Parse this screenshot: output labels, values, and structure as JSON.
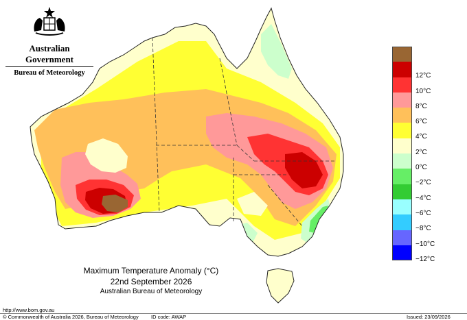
{
  "header": {
    "government": "Australian Government",
    "bureau": "Bureau of Meteorology"
  },
  "map": {
    "title": "Maximum Temperature Anomaly (°C)",
    "date": "22nd September 2026",
    "agency": "Australian Bureau of Meteorology",
    "url": "http://www.bom.gov.au",
    "colors": {
      "ocean": "#ffffff",
      "light_yellow": "#ffffcc",
      "yellow": "#ffff33",
      "orange": "#ffc05a",
      "pink": "#ff9999",
      "red": "#ff3333",
      "dark_red": "#cc0000",
      "brown": "#996633",
      "pale_green": "#ccffcc",
      "light_green": "#66ee66"
    }
  },
  "legend": {
    "items": [
      {
        "label": "",
        "color": "#996633"
      },
      {
        "label": "12°C",
        "color": "#cc0000"
      },
      {
        "label": "10°C",
        "color": "#ff3333"
      },
      {
        "label": "8°C",
        "color": "#ff9999"
      },
      {
        "label": "6°C",
        "color": "#ffc05a"
      },
      {
        "label": "4°C",
        "color": "#ffff33"
      },
      {
        "label": "2°C",
        "color": "#ffffcc"
      },
      {
        "label": "0°C",
        "color": "#ccffcc"
      },
      {
        "label": "−2°C",
        "color": "#66ee66"
      },
      {
        "label": "−4°C",
        "color": "#33cc33"
      },
      {
        "label": "−6°C",
        "color": "#99ffff"
      },
      {
        "label": "−8°C",
        "color": "#33ccff"
      },
      {
        "label": "−10°C",
        "color": "#6666ff"
      },
      {
        "label": "−12°C",
        "color": "#0000ff"
      }
    ]
  },
  "footer": {
    "copyright": "© Commonwealth of Australia 2026, Bureau of Meteorology",
    "id_code": "ID code: AWAP",
    "issued": "Issued: 23/09/2026"
  }
}
